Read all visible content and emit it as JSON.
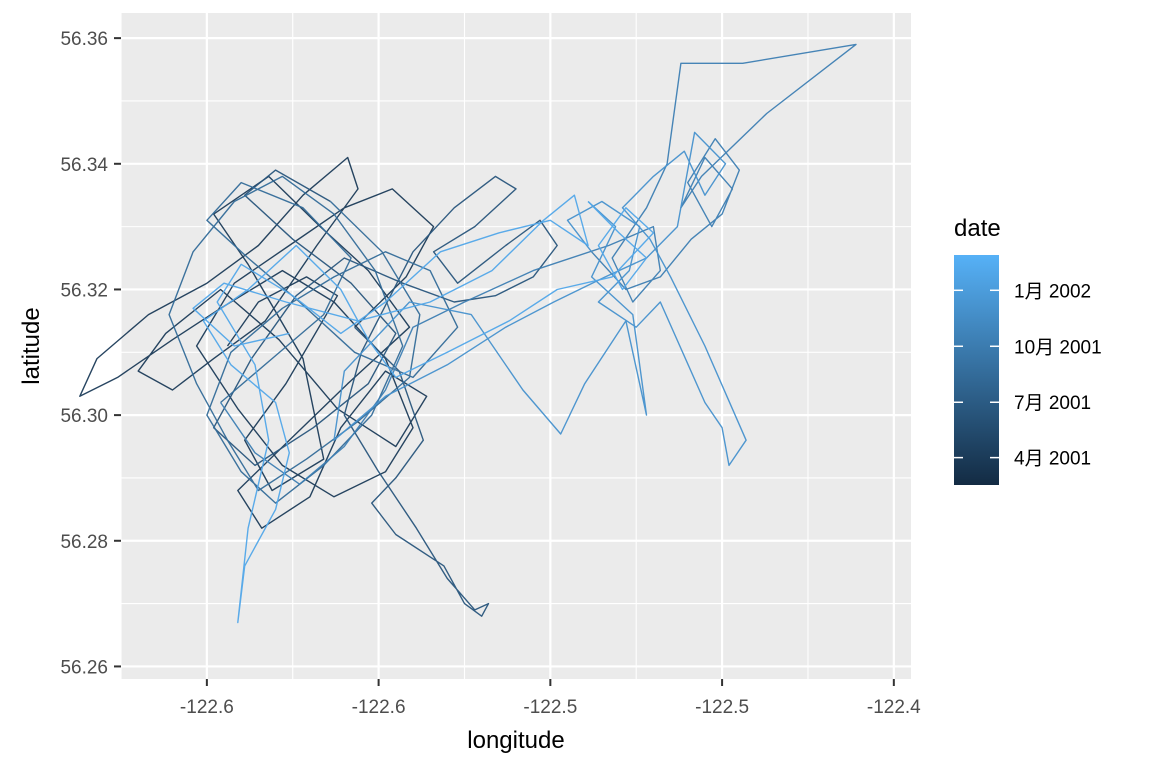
{
  "chart_data": {
    "type": "line",
    "xlabel": "longitude",
    "ylabel": "latitude",
    "x_ticks": [
      {
        "value": -122.6,
        "label": "-122.6"
      },
      {
        "value": -122.55,
        "label": "-122.6"
      },
      {
        "value": -122.5,
        "label": "-122.5"
      },
      {
        "value": -122.45,
        "label": "-122.5"
      },
      {
        "value": -122.4,
        "label": "-122.4"
      }
    ],
    "y_ticks": [
      {
        "value": 56.26,
        "label": "56.26"
      },
      {
        "value": 56.28,
        "label": "56.28"
      },
      {
        "value": 56.3,
        "label": "56.30"
      },
      {
        "value": 56.32,
        "label": "56.32"
      },
      {
        "value": 56.34,
        "label": "56.34"
      },
      {
        "value": 56.36,
        "label": "56.36"
      }
    ],
    "xlim": [
      -122.625,
      -122.395
    ],
    "ylim": [
      56.258,
      56.364
    ],
    "grid": true,
    "legend": {
      "title": "date",
      "position": "right",
      "type": "colorbar",
      "low_color": "#132B43",
      "high_color": "#56B1F7",
      "range": [
        "2001-02-15",
        "2002-02-28"
      ],
      "breaks": [
        {
          "date": "2001-04-01",
          "label": "4月 2001"
        },
        {
          "date": "2001-07-01",
          "label": "7月 2001"
        },
        {
          "date": "2001-10-01",
          "label": "10月 2001"
        },
        {
          "date": "2002-01-01",
          "label": "1月 2002"
        }
      ]
    },
    "colors": {
      "panel_background": "#EBEBEB",
      "grid_major": "#FFFFFF",
      "axis_text": "#4D4D4D",
      "title_text": "#000000"
    },
    "series": [
      {
        "date_range": [
          "2001-02-15",
          "2001-05-15"
        ],
        "points": [
          [
            -122.594,
            56.311
          ],
          [
            -122.585,
            56.318
          ],
          [
            -122.571,
            56.322
          ],
          [
            -122.562,
            56.319
          ],
          [
            -122.577,
            56.305
          ],
          [
            -122.589,
            56.296
          ],
          [
            -122.581,
            56.288
          ],
          [
            -122.566,
            56.293
          ],
          [
            -122.572,
            56.309
          ],
          [
            -122.588,
            56.324
          ],
          [
            -122.598,
            56.332
          ],
          [
            -122.582,
            56.338
          ],
          [
            -122.567,
            56.33
          ],
          [
            -122.553,
            56.323
          ],
          [
            -122.541,
            56.314
          ],
          [
            -122.559,
            56.305
          ],
          [
            -122.576,
            56.296
          ],
          [
            -122.591,
            56.288
          ],
          [
            -122.584,
            56.282
          ],
          [
            -122.57,
            56.287
          ],
          [
            -122.561,
            56.298
          ],
          [
            -122.548,
            56.307
          ],
          [
            -122.536,
            56.303
          ],
          [
            -122.545,
            56.295
          ],
          [
            -122.562,
            56.301
          ],
          [
            -122.579,
            56.312
          ],
          [
            -122.596,
            56.32
          ],
          [
            -122.612,
            56.313
          ],
          [
            -122.62,
            56.307
          ],
          [
            -122.61,
            56.304
          ],
          [
            -122.598,
            56.309
          ],
          [
            -122.583,
            56.315
          ],
          [
            -122.568,
            56.327
          ],
          [
            -122.556,
            56.336
          ],
          [
            -122.559,
            56.341
          ],
          [
            -122.572,
            56.335
          ],
          [
            -122.585,
            56.327
          ],
          [
            -122.6,
            56.321
          ],
          [
            -122.617,
            56.316
          ],
          [
            -122.632,
            56.309
          ],
          [
            -122.637,
            56.303
          ],
          [
            -122.626,
            56.306
          ],
          [
            -122.61,
            56.312
          ],
          [
            -122.596,
            56.317
          ],
          [
            -122.578,
            56.323
          ],
          [
            -122.563,
            56.318
          ],
          [
            -122.548,
            56.309
          ],
          [
            -122.54,
            56.298
          ],
          [
            -122.548,
            56.291
          ],
          [
            -122.563,
            56.287
          ],
          [
            -122.578,
            56.292
          ],
          [
            -122.591,
            56.301
          ],
          [
            -122.603,
            56.311
          ],
          [
            -122.592,
            56.321
          ],
          [
            -122.576,
            56.327
          ],
          [
            -122.56,
            56.333
          ],
          [
            -122.546,
            56.336
          ],
          [
            -122.534,
            56.33
          ],
          [
            -122.542,
            56.322
          ],
          [
            -122.557,
            56.314
          ]
        ]
      },
      {
        "date_range": [
          "2001-05-15",
          "2001-07-15"
        ],
        "points": [
          [
            -122.557,
            56.314
          ],
          [
            -122.544,
            56.307
          ],
          [
            -122.537,
            56.296
          ],
          [
            -122.545,
            56.29
          ],
          [
            -122.552,
            56.286
          ],
          [
            -122.545,
            56.281
          ],
          [
            -122.531,
            56.276
          ],
          [
            -122.525,
            56.27
          ],
          [
            -122.52,
            56.268
          ],
          [
            -122.518,
            56.27
          ],
          [
            -122.522,
            56.269
          ],
          [
            -122.53,
            56.274
          ],
          [
            -122.539,
            56.282
          ],
          [
            -122.55,
            56.291
          ],
          [
            -122.56,
            56.3
          ],
          [
            -122.555,
            56.31
          ],
          [
            -122.54,
            56.326
          ],
          [
            -122.528,
            56.333
          ],
          [
            -122.516,
            56.338
          ],
          [
            -122.51,
            56.336
          ],
          [
            -122.522,
            56.33
          ],
          [
            -122.534,
            56.326
          ],
          [
            -122.527,
            56.321
          ],
          [
            -122.513,
            56.327
          ],
          [
            -122.503,
            56.331
          ],
          [
            -122.498,
            56.327
          ],
          [
            -122.505,
            56.322
          ],
          [
            -122.516,
            56.319
          ],
          [
            -122.528,
            56.318
          ],
          [
            -122.543,
            56.321
          ],
          [
            -122.56,
            56.325
          ],
          [
            -122.574,
            56.319
          ],
          [
            -122.587,
            56.309
          ],
          [
            -122.598,
            56.298
          ],
          [
            -122.586,
            56.292
          ],
          [
            -122.569,
            56.298
          ],
          [
            -122.553,
            56.305
          ],
          [
            -122.545,
            56.313
          ],
          [
            -122.558,
            56.321
          ],
          [
            -122.575,
            56.328
          ],
          [
            -122.589,
            56.335
          ],
          [
            -122.58,
            56.339
          ],
          [
            -122.564,
            56.334
          ]
        ]
      },
      {
        "date_range": [
          "2001-07-15",
          "2001-09-15"
        ],
        "points": [
          [
            -122.564,
            56.334
          ],
          [
            -122.549,
            56.326
          ],
          [
            -122.538,
            56.316
          ],
          [
            -122.541,
            56.306
          ],
          [
            -122.556,
            56.299
          ],
          [
            -122.571,
            56.293
          ],
          [
            -122.585,
            56.288
          ],
          [
            -122.594,
            56.296
          ],
          [
            -122.603,
            56.305
          ],
          [
            -122.611,
            56.316
          ],
          [
            -122.604,
            56.326
          ],
          [
            -122.592,
            56.334
          ],
          [
            -122.578,
            56.338
          ],
          [
            -122.563,
            56.332
          ],
          [
            -122.551,
            56.323
          ],
          [
            -122.543,
            56.311
          ],
          [
            -122.552,
            56.3
          ],
          [
            -122.566,
            56.292
          ],
          [
            -122.58,
            56.286
          ],
          [
            -122.59,
            56.291
          ],
          [
            -122.6,
            56.3
          ],
          [
            -122.593,
            56.31
          ],
          [
            -122.578,
            56.317
          ],
          [
            -122.563,
            56.322
          ],
          [
            -122.548,
            56.326
          ],
          [
            -122.535,
            56.323
          ],
          [
            -122.527,
            56.314
          ],
          [
            -122.54,
            56.306
          ],
          [
            -122.557,
            56.31
          ],
          [
            -122.573,
            56.318
          ],
          [
            -122.588,
            56.325
          ],
          [
            -122.6,
            56.331
          ],
          [
            -122.59,
            56.337
          ],
          [
            -122.572,
            56.333
          ],
          [
            -122.558,
            56.325
          ],
          [
            -122.566,
            56.316
          ],
          [
            -122.581,
            56.309
          ],
          [
            -122.596,
            56.302
          ]
        ]
      },
      {
        "date_range": [
          "2001-09-15",
          "2001-11-01"
        ],
        "points": [
          [
            -122.596,
            56.302
          ],
          [
            -122.586,
            56.294
          ],
          [
            -122.573,
            56.289
          ],
          [
            -122.56,
            56.295
          ],
          [
            -122.548,
            56.304
          ],
          [
            -122.54,
            56.314
          ],
          [
            -122.525,
            56.318
          ],
          [
            -122.505,
            56.323
          ],
          [
            -122.483,
            56.327
          ],
          [
            -122.47,
            56.33
          ],
          [
            -122.468,
            56.323
          ],
          [
            -122.476,
            56.318
          ],
          [
            -122.482,
            56.325
          ],
          [
            -122.472,
            56.333
          ],
          [
            -122.466,
            56.34
          ],
          [
            -122.462,
            56.356
          ],
          [
            -122.444,
            56.356
          ],
          [
            -122.411,
            56.359
          ],
          [
            -122.437,
            56.348
          ],
          [
            -122.456,
            56.338
          ],
          [
            -122.462,
            56.333
          ],
          [
            -122.455,
            56.341
          ],
          [
            -122.447,
            56.336
          ],
          [
            -122.453,
            56.33
          ],
          [
            -122.46,
            56.337
          ],
          [
            -122.452,
            56.344
          ],
          [
            -122.445,
            56.339
          ],
          [
            -122.45,
            56.332
          ],
          [
            -122.459,
            56.328
          ],
          [
            -122.468,
            56.322
          ],
          [
            -122.478,
            56.32
          ],
          [
            -122.488,
            56.326
          ]
        ]
      },
      {
        "date_range": [
          "2001-11-01",
          "2001-12-31"
        ],
        "points": [
          [
            -122.488,
            56.326
          ],
          [
            -122.495,
            56.331
          ],
          [
            -122.485,
            56.334
          ],
          [
            -122.474,
            56.33
          ],
          [
            -122.477,
            56.323
          ],
          [
            -122.486,
            56.318
          ],
          [
            -122.475,
            56.314
          ],
          [
            -122.468,
            56.318
          ],
          [
            -122.455,
            56.302
          ],
          [
            -122.45,
            56.298
          ],
          [
            -122.448,
            56.292
          ],
          [
            -122.443,
            56.296
          ],
          [
            -122.455,
            56.311
          ],
          [
            -122.465,
            56.322
          ],
          [
            -122.471,
            56.328
          ],
          [
            -122.479,
            56.333
          ],
          [
            -122.47,
            56.338
          ],
          [
            -122.461,
            56.342
          ],
          [
            -122.455,
            56.335
          ],
          [
            -122.449,
            56.34
          ],
          [
            -122.458,
            56.345
          ],
          [
            -122.463,
            56.33
          ],
          [
            -122.472,
            56.325
          ],
          [
            -122.484,
            56.322
          ],
          [
            -122.499,
            56.318
          ],
          [
            -122.513,
            56.314
          ],
          [
            -122.53,
            56.308
          ],
          [
            -122.548,
            56.303
          ],
          [
            -122.563,
            56.296
          ],
          [
            -122.56,
            56.307
          ],
          [
            -122.541,
            56.318
          ],
          [
            -122.523,
            56.316
          ],
          [
            -122.508,
            56.304
          ],
          [
            -122.497,
            56.297
          ],
          [
            -122.49,
            56.305
          ],
          [
            -122.478,
            56.315
          ],
          [
            -122.472,
            56.3
          ],
          [
            -122.476,
            56.316
          ],
          [
            -122.488,
            56.322
          ],
          [
            -122.481,
            56.33
          ],
          [
            -122.489,
            56.334
          ]
        ]
      },
      {
        "date_range": [
          "2002-01-01",
          "2002-02-28"
        ],
        "points": [
          [
            -122.489,
            56.334
          ],
          [
            -122.48,
            56.329
          ],
          [
            -122.472,
            56.325
          ],
          [
            -122.479,
            56.32
          ],
          [
            -122.486,
            56.327
          ],
          [
            -122.478,
            56.333
          ],
          [
            -122.47,
            56.329
          ],
          [
            -122.482,
            56.322
          ],
          [
            -122.498,
            56.32
          ],
          [
            -122.512,
            56.315
          ],
          [
            -122.53,
            56.31
          ],
          [
            -122.545,
            56.306
          ],
          [
            -122.553,
            56.312
          ],
          [
            -122.561,
            56.32
          ],
          [
            -122.574,
            56.327
          ],
          [
            -122.588,
            56.32
          ],
          [
            -122.601,
            56.315
          ],
          [
            -122.593,
            56.308
          ],
          [
            -122.58,
            56.302
          ],
          [
            -122.576,
            56.294
          ],
          [
            -122.58,
            56.285
          ],
          [
            -122.589,
            56.276
          ],
          [
            -122.591,
            56.267
          ],
          [
            -122.588,
            56.282
          ],
          [
            -122.582,
            56.296
          ],
          [
            -122.586,
            56.308
          ],
          [
            -122.597,
            56.318
          ],
          [
            -122.59,
            56.324
          ],
          [
            -122.575,
            56.319
          ],
          [
            -122.561,
            56.313
          ],
          [
            -122.548,
            56.318
          ],
          [
            -122.532,
            56.326
          ],
          [
            -122.515,
            56.329
          ],
          [
            -122.5,
            56.331
          ],
          [
            -122.489,
            56.327
          ],
          [
            -122.493,
            56.335
          ],
          [
            -122.502,
            56.331
          ],
          [
            -122.517,
            56.323
          ],
          [
            -122.535,
            56.318
          ],
          [
            -122.556,
            56.315
          ],
          [
            -122.577,
            56.318
          ],
          [
            -122.595,
            56.321
          ],
          [
            -122.604,
            56.317
          ],
          [
            -122.592,
            56.311
          ],
          [
            -122.576,
            56.313
          ]
        ]
      }
    ]
  }
}
